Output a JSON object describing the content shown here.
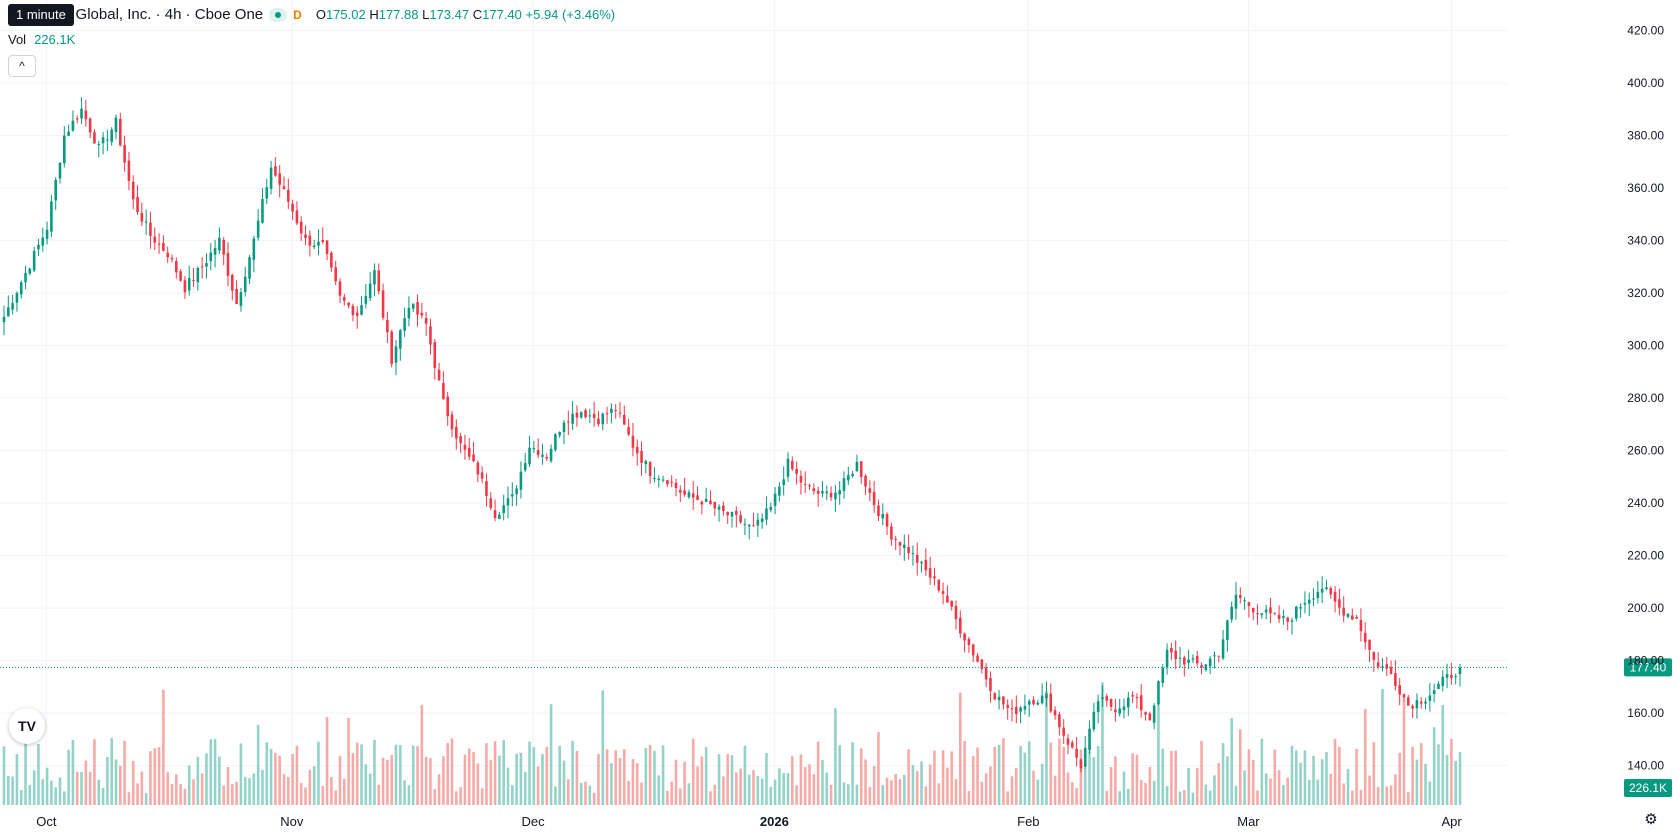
{
  "header": {
    "symbol_title": "Coinbase Global, Inc. · 4h · Cboe One",
    "tooltip": "1 minute",
    "market_status": "D",
    "open_label": "O",
    "open": "175.02",
    "high_label": "H",
    "high": "177.88",
    "low_label": "L",
    "low": "173.47",
    "close_label": "C",
    "close": "177.40",
    "change": "+5.94 (+3.46%)"
  },
  "volume_legend": {
    "label": "Vol",
    "value": "226.1K"
  },
  "controls": {
    "collapse": "^",
    "logo": "TV",
    "settings_icon": "settings-gear-icon"
  },
  "colors": {
    "up": "#089981",
    "down": "#f23645",
    "up_vol": "#92d2c7",
    "down_vol": "#f7a9a7",
    "grid": "#f0f3fa",
    "axis_text": "#131722"
  },
  "chart_data": {
    "type": "candlestick",
    "y_axis": {
      "ticks": [
        "140.00",
        "160.00",
        "180.00",
        "200.00",
        "220.00",
        "240.00",
        "260.00",
        "280.00",
        "300.00",
        "320.00",
        "340.00",
        "360.00",
        "380.00",
        "400.00",
        "420.00"
      ],
      "ylim": [
        125,
        424
      ]
    },
    "x_axis": {
      "ticks": [
        "Oct",
        "Nov",
        "Dec",
        "2026",
        "Feb",
        "Mar",
        "Apr"
      ]
    },
    "last_price_label": "177.40",
    "last_volume_label": "226.1K",
    "series": [
      {
        "name": "price",
        "anchors": [
          [
            0,
            311
          ],
          [
            6,
            331
          ],
          [
            10,
            345
          ],
          [
            14,
            380
          ],
          [
            18,
            390
          ],
          [
            22,
            375
          ],
          [
            26,
            385
          ],
          [
            30,
            355
          ],
          [
            34,
            342
          ],
          [
            38,
            335
          ],
          [
            42,
            322
          ],
          [
            46,
            330
          ],
          [
            50,
            340
          ],
          [
            54,
            316
          ],
          [
            58,
            340
          ],
          [
            62,
            368
          ],
          [
            66,
            355
          ],
          [
            70,
            340
          ],
          [
            74,
            338
          ],
          [
            78,
            318
          ],
          [
            82,
            312
          ],
          [
            86,
            328
          ],
          [
            90,
            295
          ],
          [
            94,
            316
          ],
          [
            98,
            308
          ],
          [
            102,
            278
          ],
          [
            106,
            262
          ],
          [
            110,
            252
          ],
          [
            114,
            236
          ],
          [
            118,
            242
          ],
          [
            122,
            262
          ],
          [
            126,
            258
          ],
          [
            130,
            272
          ],
          [
            134,
            275
          ],
          [
            138,
            272
          ],
          [
            142,
            276
          ],
          [
            146,
            262
          ],
          [
            150,
            252
          ],
          [
            154,
            249
          ],
          [
            158,
            243
          ],
          [
            162,
            241
          ],
          [
            166,
            237
          ],
          [
            170,
            234
          ],
          [
            174,
            230
          ],
          [
            178,
            238
          ],
          [
            182,
            255
          ],
          [
            186,
            246
          ],
          [
            190,
            243
          ],
          [
            194,
            245
          ],
          [
            198,
            255
          ],
          [
            202,
            240
          ],
          [
            206,
            228
          ],
          [
            210,
            222
          ],
          [
            214,
            214
          ],
          [
            218,
            206
          ],
          [
            222,
            192
          ],
          [
            226,
            180
          ],
          [
            230,
            167
          ],
          [
            234,
            160
          ],
          [
            238,
            165
          ],
          [
            242,
            166
          ],
          [
            246,
            152
          ],
          [
            250,
            140
          ],
          [
            254,
            165
          ],
          [
            258,
            162
          ],
          [
            262,
            166
          ],
          [
            266,
            158
          ],
          [
            270,
            183
          ],
          [
            274,
            180
          ],
          [
            278,
            178
          ],
          [
            282,
            183
          ],
          [
            286,
            205
          ],
          [
            290,
            200
          ],
          [
            294,
            197
          ],
          [
            298,
            195
          ],
          [
            302,
            203
          ],
          [
            306,
            208
          ],
          [
            310,
            200
          ],
          [
            314,
            196
          ],
          [
            318,
            180
          ],
          [
            322,
            175
          ],
          [
            326,
            163
          ],
          [
            330,
            166
          ],
          [
            334,
            172
          ],
          [
            338,
            177.4
          ]
        ]
      },
      {
        "name": "volume",
        "max": 1
      }
    ]
  }
}
